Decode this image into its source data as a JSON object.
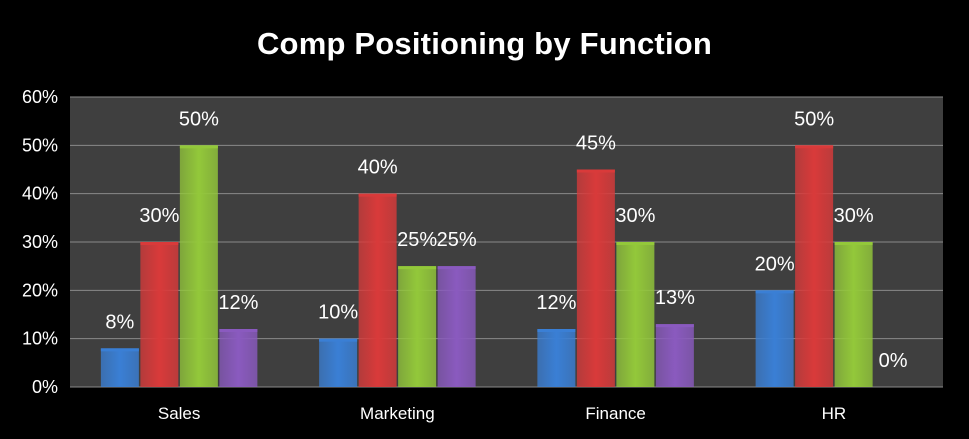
{
  "chart_data": {
    "type": "bar",
    "title": "Comp Positioning by Function",
    "xlabel": "",
    "ylabel": "",
    "categories": [
      "Sales",
      "Marketing",
      "Finance",
      "HR"
    ],
    "series": [
      {
        "values": [
          8,
          10,
          12,
          20
        ],
        "labels": [
          "8%",
          "10%",
          "12%",
          "20%"
        ],
        "color": "#3a7fd5"
      },
      {
        "values": [
          30,
          40,
          45,
          50
        ],
        "labels": [
          "30%",
          "40%",
          "45%",
          "50%"
        ],
        "color": "#d93a3a"
      },
      {
        "values": [
          50,
          25,
          30,
          30
        ],
        "labels": [
          "50%",
          "25%",
          "30%",
          "30%"
        ],
        "color": "#93c83a"
      },
      {
        "values": [
          12,
          25,
          13,
          0
        ],
        "labels": [
          "12%",
          "25%",
          "13%",
          "0%"
        ],
        "color": "#8a5abf"
      }
    ],
    "ylim": [
      0,
      60
    ],
    "yticks": [
      "0%",
      "10%",
      "20%",
      "30%",
      "40%",
      "50%",
      "60%"
    ],
    "grid": true,
    "plot_background": "#3f3f3f"
  }
}
